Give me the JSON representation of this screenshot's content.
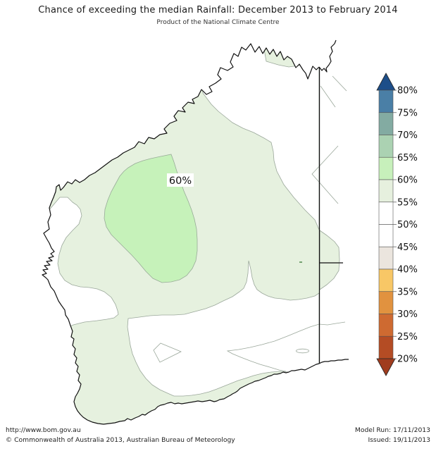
{
  "title": "Chance of exceeding the median Rainfall: December 2013 to February 2014",
  "subtitle": "Product of the National Climate Centre",
  "map": {
    "region_label": "60%",
    "colors": {
      "land_55_60": "#e6f1df",
      "zone_60_65": "#c6f2ba",
      "zone_45_55": "#ffffff",
      "coastline": "#111111",
      "state_border": "#111111",
      "contour": "#9aa79a"
    }
  },
  "legend": {
    "labels": [
      "80%",
      "75%",
      "70%",
      "65%",
      "60%",
      "55%",
      "50%",
      "45%",
      "40%",
      "35%",
      "30%",
      "25%",
      "20%"
    ],
    "segment_colors": [
      "#4a7fa6",
      "#83aba2",
      "#abd2b2",
      "#c7f0bb",
      "#e6f0de",
      "#ffffff",
      "#ffffff",
      "#ebe5de",
      "#f8c766",
      "#e1923f",
      "#ce6a31",
      "#b44c24"
    ],
    "arrow_top_color": "#1d4e89",
    "arrow_bottom_color": "#a03c1e"
  },
  "footer": {
    "url": "http://www.bom.gov.au",
    "copyright": "©  Commonwealth of Australia 2013, Australian Bureau of Meteorology",
    "model_run": "Model Run: 17/11/2013",
    "issued": "Issued: 19/11/2013"
  }
}
